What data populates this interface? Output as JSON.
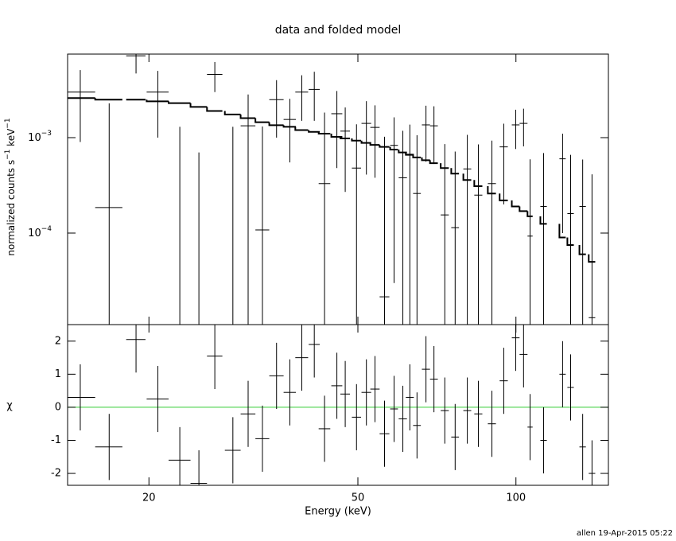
{
  "chart_data": [
    {
      "type": "errorbar",
      "title": "data and folded model",
      "ylabel_parts": [
        "normalized counts s",
        "−1",
        " keV",
        "−1"
      ],
      "log_y": true,
      "color": "#000000",
      "model_color": "#000000",
      "ylim": [
        1.1e-05,
        0.0075
      ],
      "yticks": [
        {
          "value": 0.001,
          "label": "10",
          "exponent": "−3"
        },
        {
          "value": 0.0001,
          "label": "10",
          "exponent": "−4"
        }
      ],
      "x": [
        14.8,
        16.8,
        18.9,
        20.8,
        22.9,
        24.9,
        26.7,
        28.9,
        30.9,
        32.9,
        35.0,
        37.1,
        39.1,
        41.3,
        43.2,
        45.6,
        47.3,
        49.7,
        51.9,
        53.9,
        56.2,
        58.6,
        60.9,
        62.8,
        64.8,
        67.4,
        69.8,
        73.2,
        76.6,
        80.8,
        84.8,
        90.0,
        94.8,
        99.9,
        103.4,
        106.4,
        112.9,
        122.7,
        127.1,
        134.0,
        139.6
      ],
      "x_err": [
        1.0,
        1.0,
        0.8,
        1.0,
        1.1,
        0.9,
        0.9,
        1.0,
        1.0,
        1.0,
        1.1,
        1.0,
        1.1,
        1.0,
        1.1,
        1.1,
        1.0,
        1.0,
        1.1,
        1.1,
        1.2,
        1.0,
        1.1,
        1.1,
        1.1,
        1.2,
        1.2,
        1.3,
        1.3,
        1.4,
        1.5,
        1.6,
        1.7,
        1.7,
        1.8,
        1.2,
        1.6,
        1.7,
        1.8,
        1.9,
        2.0
      ],
      "y": [
        0.003,
        0.000185,
        0.0072,
        0.003,
        -0.0004,
        -0.0007,
        0.0046,
        -0.0005,
        0.00133,
        0.000108,
        0.0025,
        0.00155,
        0.003,
        0.0032,
        0.00033,
        0.00178,
        0.00117,
        0.00048,
        0.00141,
        0.00128,
        2.15e-05,
        0.00083,
        0.00038,
        0.00067,
        0.00026,
        0.00136,
        0.00133,
        0.000155,
        0.000114,
        0.00047,
        0.00025,
        0.00033,
        0.0008,
        0.00136,
        0.00141,
        9.3e-05,
        0.00019,
        0.0006,
        0.00016,
        0.00019,
        1.3e-05
      ],
      "y_err": [
        0.0021,
        0.0021,
        0.0025,
        0.002,
        0.0017,
        0.0014,
        0.0016,
        0.0018,
        0.0015,
        0.0012,
        0.0015,
        0.001,
        0.0015,
        0.0017,
        0.0015,
        0.0013,
        0.0009,
        0.0009,
        0.001,
        0.0009,
        0.001,
        0.0008,
        0.0008,
        0.0007,
        0.0008,
        0.0008,
        0.0008,
        0.0007,
        0.0006,
        0.0006,
        0.0006,
        0.0006,
        0.0006,
        0.0006,
        0.0006,
        0.0005,
        0.0005,
        0.0005,
        0.0005,
        0.0004,
        0.0004
      ],
      "model": [
        0.0026,
        0.0025,
        0.0025,
        0.0024,
        0.0023,
        0.0021,
        0.0019,
        0.00175,
        0.0016,
        0.00145,
        0.00135,
        0.0013,
        0.0012,
        0.00115,
        0.0011,
        0.00102,
        0.00098,
        0.00093,
        0.00088,
        0.00084,
        0.0008,
        0.00075,
        0.0007,
        0.00066,
        0.00062,
        0.00058,
        0.00054,
        0.00048,
        0.00042,
        0.00036,
        0.00031,
        0.00026,
        0.00022,
        0.00019,
        0.00017,
        0.00015,
        0.000125,
        9e-05,
        7.5e-05,
        6e-05,
        5e-05
      ]
    },
    {
      "type": "residual",
      "ylabel": "χ",
      "xlabel": "Energy (keV)",
      "log_x": true,
      "color": "#000000",
      "reference": 0,
      "reference_color": "#33cc33",
      "xlim": [
        14,
        150
      ],
      "xticks": [
        20,
        50,
        100
      ],
      "ylim": [
        -2.36,
        2.5
      ],
      "yticks": [
        -2,
        -1,
        0,
        1,
        2
      ],
      "values": [
        0.3,
        -1.2,
        2.05,
        0.25,
        -1.6,
        -2.3,
        1.55,
        -1.3,
        -0.2,
        -0.95,
        0.95,
        0.45,
        1.5,
        1.9,
        -0.65,
        0.65,
        0.4,
        -0.3,
        0.45,
        0.55,
        -0.8,
        -0.05,
        -0.35,
        0.3,
        -0.55,
        1.15,
        0.85,
        -0.1,
        -0.9,
        -0.1,
        -0.2,
        -0.5,
        0.8,
        2.1,
        1.6,
        -0.6,
        -1.0,
        1.0,
        0.6,
        -1.2,
        -2.0
      ],
      "errors": [
        1,
        1,
        1,
        1,
        1,
        1,
        1,
        1,
        1,
        1,
        1,
        1,
        1,
        1,
        1,
        1,
        1,
        1,
        1,
        1,
        1,
        1,
        1,
        1,
        1,
        1,
        1,
        1,
        1,
        1,
        1,
        1,
        1,
        1,
        1,
        1,
        1,
        1,
        1,
        1,
        1
      ]
    }
  ],
  "footer": "allen 19-Apr-2015 05:22"
}
